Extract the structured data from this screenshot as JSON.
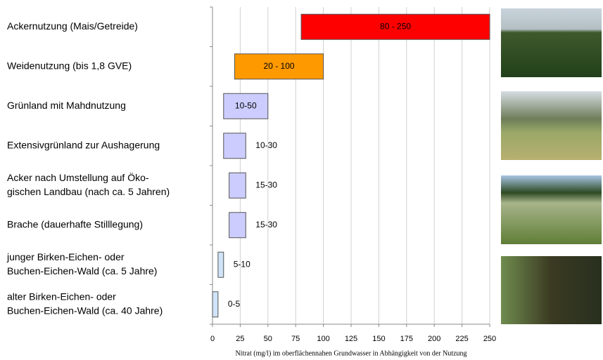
{
  "chart_data": {
    "type": "range-bar",
    "categories": [
      [
        "Ackernutzung (Mais/Getreide)"
      ],
      [
        "Weidenutzung (bis 1,8 GVE)"
      ],
      [
        "Grünland mit Mahdnutzung"
      ],
      [
        "Extensivgrünland  zur Aushagerung"
      ],
      [
        "Acker nach Umstellung auf Öko-",
        "gischen Landbau (nach ca. 5 Jahren)"
      ],
      [
        "Brache (dauerhafte Stilllegung)"
      ],
      [
        "junger Birken-Eichen- oder",
        "Buchen-Eichen-Wald (ca. 5 Jahre)"
      ],
      [
        "alter Birken-Eichen- oder",
        "Buchen-Eichen-Wald  (ca. 40 Jahre)"
      ]
    ],
    "low": [
      80,
      20,
      10,
      10,
      15,
      15,
      5,
      0
    ],
    "high": [
      250,
      100,
      50,
      30,
      30,
      30,
      10,
      5
    ],
    "value_labels": [
      "80 - 250",
      "20 - 100",
      "10-50",
      "10-30",
      "15-30",
      "15-30",
      "5-10",
      "0-5"
    ],
    "colors": [
      "#ff0000",
      "#ff9900",
      "#ccccff",
      "#ccccff",
      "#ccccff",
      "#ccccff",
      "#cfe4f8",
      "#cfe4f8"
    ],
    "xlim": [
      0,
      250
    ],
    "xticks": [
      0,
      25,
      50,
      75,
      100,
      125,
      150,
      175,
      200,
      225,
      250
    ],
    "grid": true,
    "xlabel": "Nitrat (mg/l) im oberflächennahen Grundwasser in Abhängigkeit von der Nutzung"
  }
}
